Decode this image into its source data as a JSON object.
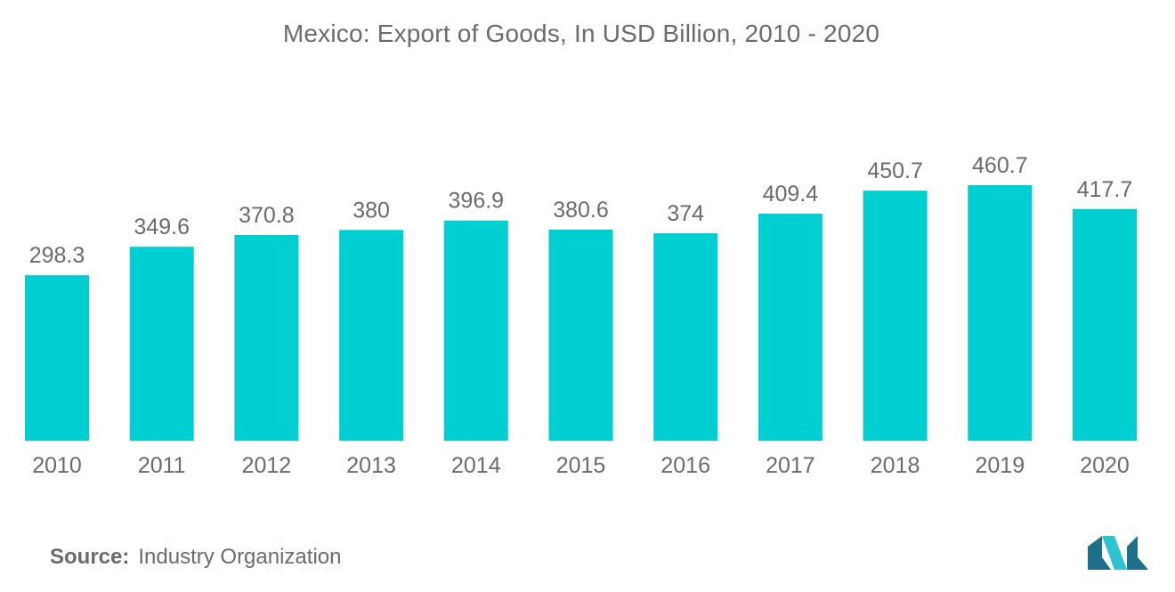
{
  "chart_data": {
    "type": "bar",
    "title": "Mexico: Export of Goods, In USD Billion, 2010 - 2020",
    "categories": [
      "2010",
      "2011",
      "2012",
      "2013",
      "2014",
      "2015",
      "2016",
      "2017",
      "2018",
      "2019",
      "2020"
    ],
    "values": [
      298.3,
      349.6,
      370.8,
      380,
      396.9,
      380.6,
      374,
      409.4,
      450.7,
      460.7,
      417.7
    ],
    "value_labels": [
      "298.3",
      "349.6",
      "370.8",
      "380",
      "396.9",
      "380.6",
      "374",
      "409.4",
      "450.7",
      "460.7",
      "417.7"
    ],
    "xlabel": "",
    "ylabel": "",
    "ylim": [
      0,
      460.7
    ],
    "grid": false,
    "legend": "none",
    "bar_color": "#00cfd1"
  },
  "source": {
    "label": "Source:",
    "text": "Industry Organization"
  },
  "colors": {
    "text": "#6b6b6b",
    "logo_dark": "#1f6f8b",
    "logo_light": "#2bc4d0"
  }
}
